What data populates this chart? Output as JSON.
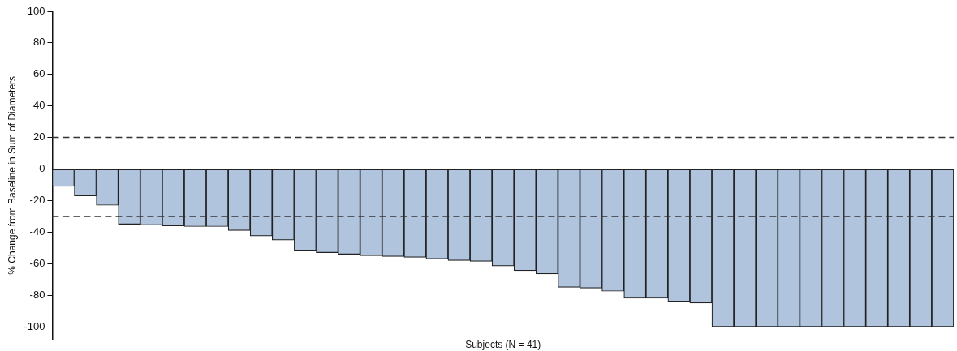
{
  "chart_data": {
    "type": "bar",
    "xlabel": "Subjects (N = 41)",
    "ylabel": "% Change from Baseline in Sum of Diameters",
    "categories": [
      null,
      null,
      null,
      null,
      null,
      null,
      null,
      null,
      null,
      null,
      null,
      null,
      null,
      null,
      null,
      null,
      null,
      null,
      null,
      null,
      null,
      null,
      null,
      null,
      null,
      null,
      null,
      null,
      null,
      null,
      null,
      null,
      null,
      null,
      null,
      null,
      null,
      null,
      null,
      null,
      null
    ],
    "values": [
      -11,
      -17,
      -23,
      -35,
      -35.5,
      -36,
      -36.5,
      -36.5,
      -39,
      -42.5,
      -45,
      -52,
      -53,
      -54,
      -55,
      -55.5,
      -56,
      -57,
      -58,
      -58.5,
      -61.5,
      -64.5,
      -66.5,
      -75,
      -75.5,
      -77.5,
      -82,
      -82,
      -84,
      -85,
      -100,
      -100,
      -100,
      -100,
      -100,
      -100,
      -100,
      -100,
      -100,
      -100,
      -100
    ],
    "color": "#b0c4de",
    "ylim": [
      -108,
      100
    ],
    "yticks": [
      -100,
      -80,
      -60,
      -40,
      -20,
      0,
      20,
      40,
      60,
      80,
      100
    ],
    "ref_lines": [
      {
        "axis": "y",
        "value": 20,
        "line_style": "dashed",
        "color": "#333333"
      },
      {
        "axis": "y",
        "value": -30,
        "line_style": "dashed",
        "color": "#333333"
      }
    ],
    "grid": false,
    "legend": false,
    "tick_labels": "y"
  }
}
